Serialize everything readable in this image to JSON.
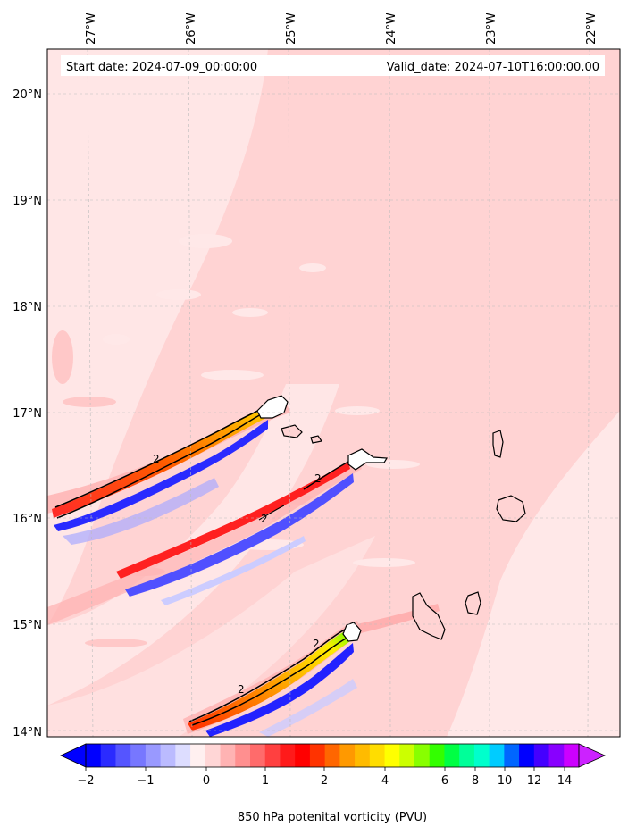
{
  "map": {
    "start_date": "Start date: 2024-07-09_00:00:00",
    "valid_date": "Valid_date: 2024-07-10T16:00:00.00",
    "lon_labels": [
      "27°W",
      "26°W",
      "25°W",
      "24°W",
      "23°W",
      "22°W"
    ],
    "lat_labels": [
      "20°N",
      "19°N",
      "18°N",
      "17°N",
      "16°N",
      "15°N",
      "14°N"
    ],
    "contour_labels": [
      "2",
      "2",
      "2",
      "2",
      "2"
    ],
    "colorbar": {
      "ticks": [
        "−2",
        "−1",
        "0",
        "1",
        "2",
        "4",
        "6",
        "8",
        "10",
        "12",
        "14"
      ],
      "label": "850 hPa potenital vorticity (PVU)",
      "colors": [
        "#0000ff",
        "#2b2bff",
        "#5555ff",
        "#7777ff",
        "#9999ff",
        "#bbbbff",
        "#ddddff",
        "#fff0f0",
        "#ffd6d6",
        "#ffb3b3",
        "#ff8f8f",
        "#ff6b6b",
        "#ff4040",
        "#ff1a1a",
        "#ff0000",
        "#ff3300",
        "#ff6600",
        "#ff9900",
        "#ffbb00",
        "#ffdd00",
        "#ffff00",
        "#ccff00",
        "#88ff00",
        "#33ff00",
        "#00ff44",
        "#00ff99",
        "#00ffcc",
        "#00ccff",
        "#0066ff",
        "#0000ff",
        "#4400ff",
        "#8800ff",
        "#cc00ff"
      ],
      "extend_low": "#0000ff",
      "extend_high": "#cc22ff"
    },
    "field_colors": {
      "background": "#ffd3d3",
      "light_pink": "#ffe8e8",
      "mid_pink": "#ffbdbd",
      "red": "#ff1a1a",
      "orange": "#ff8800",
      "yellow": "#ffdd00",
      "green": "#66ff00",
      "blue": "#2020ff",
      "light_blue": "#aaaaff"
    }
  }
}
